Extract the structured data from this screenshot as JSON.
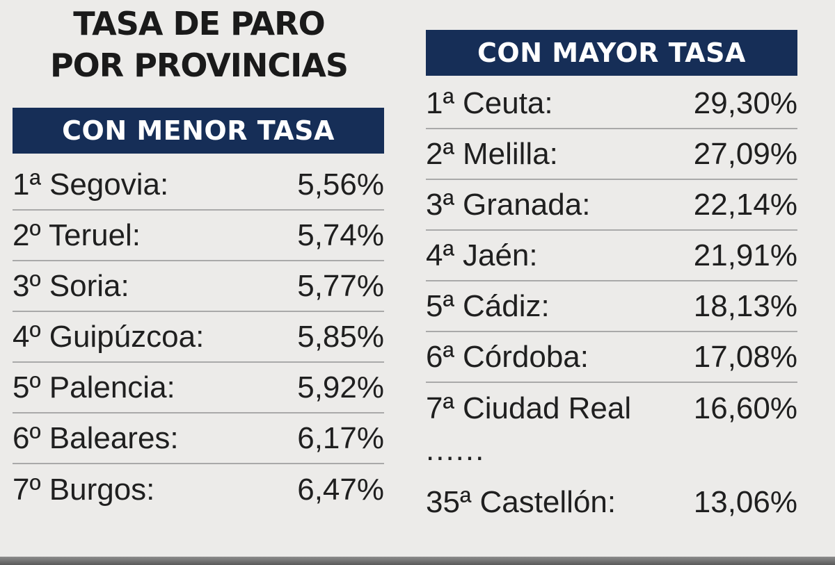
{
  "title": {
    "line1": "TASA DE PARO",
    "line2": "POR PROVINCIAS"
  },
  "lowest": {
    "header": "CON MENOR TASA",
    "rows": [
      {
        "name": "1ª Segovia:",
        "value": "5,56%"
      },
      {
        "name": "2º Teruel:",
        "value": "5,74%"
      },
      {
        "name": "3º Soria:",
        "value": "5,77%"
      },
      {
        "name": "4º Guipúzcoa:",
        "value": "5,85%"
      },
      {
        "name": "5º Palencia:",
        "value": "5,92%"
      },
      {
        "name": "6º Baleares:",
        "value": "6,17%"
      },
      {
        "name": "7º Burgos:",
        "value": "6,47%"
      }
    ]
  },
  "highest": {
    "header": "CON MAYOR TASA",
    "rows": [
      {
        "name": "1ª Ceuta:",
        "value": "29,30%"
      },
      {
        "name": "2ª Melilla:",
        "value": "27,09%"
      },
      {
        "name": "3ª Granada:",
        "value": "22,14%"
      },
      {
        "name": "4ª Jaén:",
        "value": "21,91%"
      },
      {
        "name": "5ª Cádiz:",
        "value": "18,13%"
      },
      {
        "name": "6ª Córdoba:",
        "value": "17,08%"
      },
      {
        "name": "7ª Ciudad Real",
        "value": "16,60%"
      }
    ],
    "ellipsis": "......",
    "extra": {
      "name": "35ª Castellón:",
      "value": "13,06%"
    }
  },
  "colors": {
    "header_bg": "#162e57",
    "page_bg": "#ecebe9"
  }
}
